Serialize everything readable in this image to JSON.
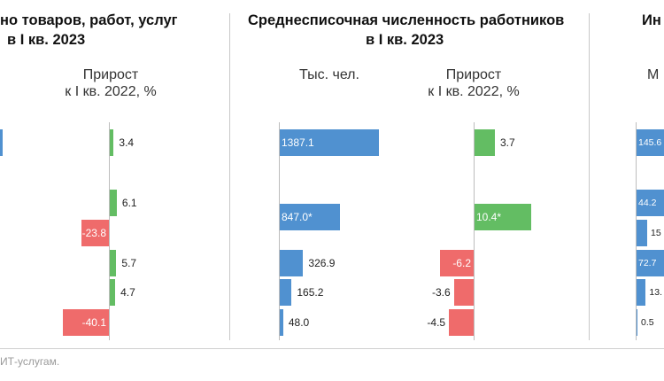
{
  "colors": {
    "blue": "#5091d0",
    "green": "#63bd63",
    "red": "#ef6b6b"
  },
  "panel1": {
    "title_line1": "но товаров, работ, услуг",
    "title_line2": "в I кв. 2023",
    "growth_header_line1": "Прирост",
    "growth_header_line2": "к I кв. 2022, %"
  },
  "panel2": {
    "title_line1": "Среднесписочная численность работников",
    "title_line2": "в I кв. 2023",
    "value_header": "Тыс. чел.",
    "growth_header_line1": "Прирост",
    "growth_header_line2": "к I кв. 2022, %"
  },
  "panel3": {
    "title_fragment": "Ин",
    "value_header_fragment": "М"
  },
  "footnote": "ИТ-услугам.",
  "chart_data": [
    {
      "type": "bar",
      "id": "p1-growth",
      "title": "Прирост к I кв. 2022, %",
      "orientation": "horizontal",
      "labels": [
        "3.4",
        "6.1",
        "-23.8",
        "5.7",
        "4.7",
        "-40.1"
      ],
      "values": [
        3.4,
        6.1,
        -23.8,
        5.7,
        4.7,
        -40.1
      ]
    },
    {
      "type": "bar",
      "id": "p2-value",
      "title": "Тыс. чел.",
      "orientation": "horizontal",
      "labels": [
        "1387.1",
        "847.0*",
        "326.9",
        "165.2",
        "48.0"
      ],
      "values": [
        1387.1,
        847.0,
        326.9,
        165.2,
        48.0
      ]
    },
    {
      "type": "bar",
      "id": "p2-growth",
      "title": "Прирост к I кв. 2022, %",
      "orientation": "horizontal",
      "labels": [
        "3.7",
        "10.4*",
        "-6.2",
        "-3.6",
        "-4.5"
      ],
      "values": [
        3.7,
        10.4,
        -6.2,
        -3.6,
        -4.5
      ]
    },
    {
      "type": "bar",
      "id": "p3-value",
      "title": "М",
      "orientation": "horizontal",
      "labels": [
        "145.6",
        "44.2",
        "15",
        "72.7",
        "13.",
        "0.5"
      ],
      "values": [
        145.6,
        44.2,
        15,
        72.7,
        13,
        0.5
      ]
    }
  ]
}
